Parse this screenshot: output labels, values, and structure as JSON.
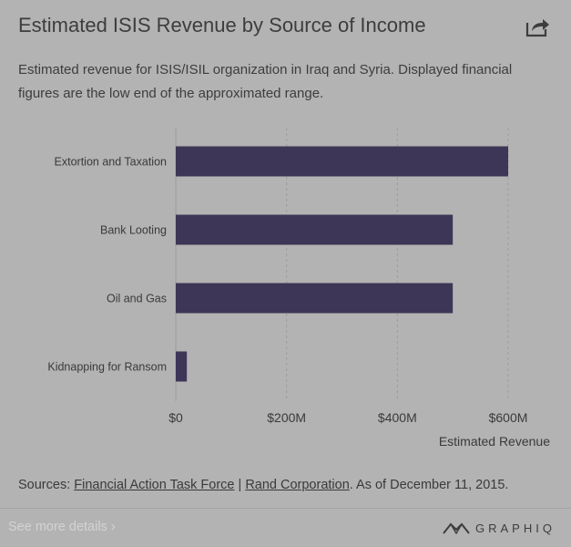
{
  "header": {
    "title": "Estimated ISIS Revenue by Source of Income",
    "share_icon": "share-icon"
  },
  "subtitle": "Estimated revenue for ISIS/ISIL organization in Iraq and Syria. Displayed financial figures are the low end of the approximated range.",
  "chart_data": {
    "type": "bar",
    "orientation": "horizontal",
    "categories": [
      "Extortion and Taxation",
      "Bank Looting",
      "Oil and Gas",
      "Kidnapping for Ransom"
    ],
    "values": [
      600000000,
      500000000,
      500000000,
      20000000
    ],
    "xlim": [
      0,
      600000000
    ],
    "x_ticks": [
      0,
      200000000,
      400000000,
      600000000
    ],
    "x_tick_labels": [
      "$0",
      "$200M",
      "$400M",
      "$600M"
    ],
    "xlabel": "Estimated Revenue",
    "grid": "vertical-dashed",
    "bar_color": "#3d3656"
  },
  "sources": {
    "prefix": "Sources: ",
    "link1": "Financial Action Task Force",
    "separator": " | ",
    "link2": "Rand Corporation",
    "suffix": ". As of December 11, 2015."
  },
  "footer": {
    "see_more": "See more details ›",
    "brand": "GRAPHIQ",
    "brand_icon": "graphiq-logo-icon"
  }
}
